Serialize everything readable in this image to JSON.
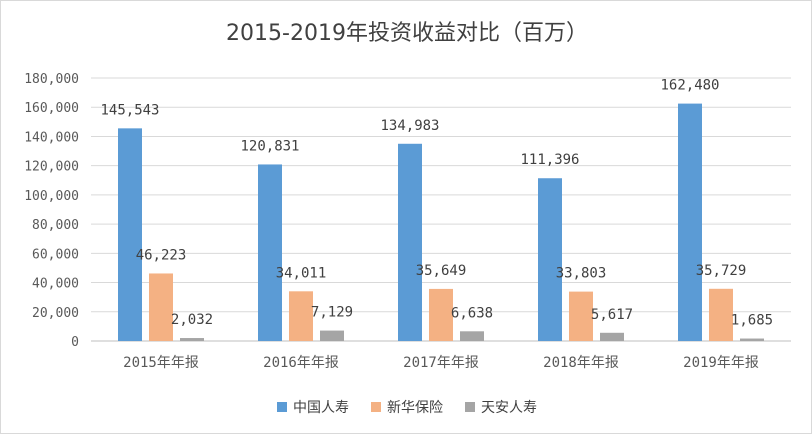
{
  "chart_data": {
    "type": "bar",
    "title": "2015-2019年投资收益对比（百万）",
    "categories": [
      "2015年年报",
      "2016年年报",
      "2017年年报",
      "2018年年报",
      "2019年年报"
    ],
    "series": [
      {
        "name": "中国人寿",
        "color": "#5b9bd5",
        "values": [
          145543,
          120831,
          134983,
          111396,
          162480
        ],
        "labels": [
          "145,543",
          "120,831",
          "134,983",
          "111,396",
          "162,480"
        ]
      },
      {
        "name": "新华保险",
        "color": "#f4b183",
        "values": [
          46223,
          34011,
          35649,
          33803,
          35729
        ],
        "labels": [
          "46,223",
          "34,011",
          "35,649",
          "33,803",
          "35,729"
        ]
      },
      {
        "name": "天安人寿",
        "color": "#a5a5a5",
        "values": [
          2032,
          7129,
          6638,
          5617,
          1685
        ],
        "labels": [
          "2,032",
          "7,129",
          "6,638",
          "5,617",
          "1,685"
        ]
      }
    ],
    "ylim": [
      0,
      180000
    ],
    "yticks": [
      "0",
      "20,000",
      "40,000",
      "60,000",
      "80,000",
      "100,000",
      "120,000",
      "140,000",
      "160,000",
      "180,000"
    ],
    "grid": true,
    "legend_position": "bottom"
  }
}
